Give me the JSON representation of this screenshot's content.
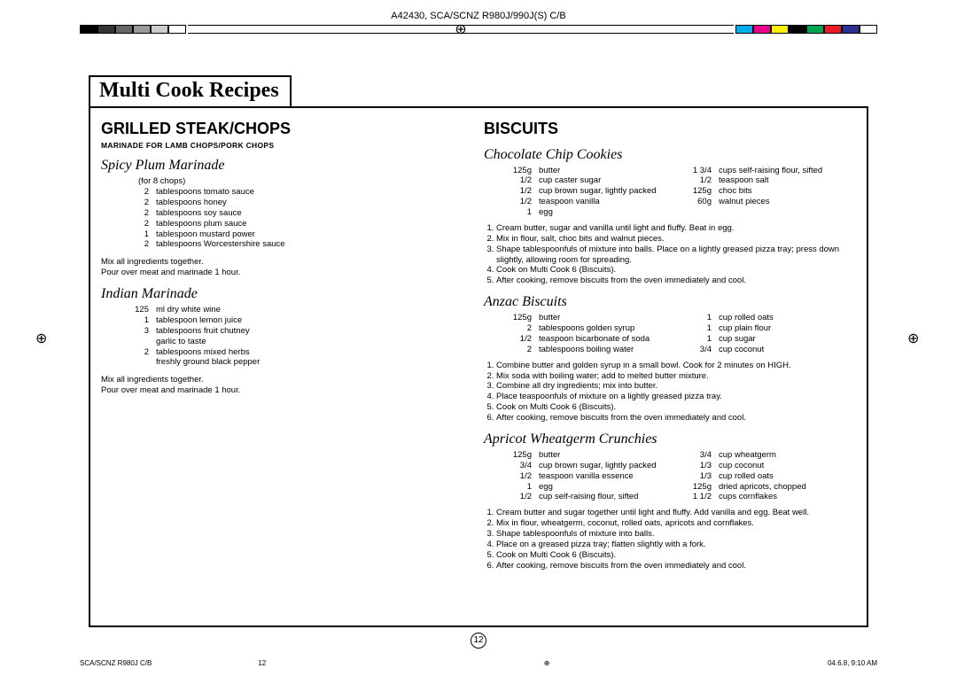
{
  "doc_id": "A42430, SCA/SCNZ R980J/990J(S) C/B",
  "page_title": "Multi Cook Recipes",
  "page_number": "12",
  "footer": {
    "left": "SCA/SCNZ R980J C/B",
    "mid": "12",
    "right": "04.6.8, 9:10 AM"
  },
  "reg_colors_left": [
    "#000000",
    "#333333",
    "#666666",
    "#999999",
    "#cccccc",
    "#ffffff"
  ],
  "reg_colors_right": [
    "#00aeef",
    "#ec008c",
    "#fff200",
    "#000000",
    "#00a651",
    "#ed1c24",
    "#2e3192",
    "#ffffff"
  ],
  "left_col": {
    "section_title": "GRILLED STEAK/CHOPS",
    "subtitle": "MARINADE FOR LAMB CHOPS/PORK CHOPS",
    "recipes": [
      {
        "name": "Spicy Plum Marinade",
        "serves": "(for 8 chops)",
        "ingredients": [
          {
            "q": "2",
            "n": "tablespoons tomato sauce"
          },
          {
            "q": "2",
            "n": "tablespoons honey"
          },
          {
            "q": "2",
            "n": "tablespoons soy sauce"
          },
          {
            "q": "2",
            "n": "tablespoons plum sauce"
          },
          {
            "q": "1",
            "n": "tablespoon mustard power"
          },
          {
            "q": "2",
            "n": "tablespoons Worcestershire sauce"
          }
        ],
        "method_lines": [
          "Mix all ingredients together.",
          "Pour over meat and marinade 1 hour."
        ]
      },
      {
        "name": "Indian Marinade",
        "ingredients": [
          {
            "q": "125",
            "n": "ml dry white wine"
          },
          {
            "q": "1",
            "n": "tablespoon lemon juice"
          },
          {
            "q": "3",
            "n": "tablespoons fruit chutney"
          },
          {
            "q": "",
            "n": "garlic to taste"
          },
          {
            "q": "2",
            "n": "tablespoons mixed herbs"
          },
          {
            "q": "",
            "n": "freshly ground black pepper"
          }
        ],
        "method_lines": [
          "Mix all ingredients together.",
          "Pour over meat and marinade 1 hour."
        ]
      }
    ]
  },
  "right_col": {
    "section_title": "BISCUITS",
    "recipes": [
      {
        "name": "Chocolate Chip Cookies",
        "ing_cols": [
          [
            {
              "q": "125g",
              "n": "butter"
            },
            {
              "q": "1/2",
              "n": "cup caster sugar"
            },
            {
              "q": "1/2",
              "n": "cup brown sugar, lightly packed"
            },
            {
              "q": "1/2",
              "n": "teaspoon vanilla"
            },
            {
              "q": "1",
              "n": "egg"
            }
          ],
          [
            {
              "q": "1 3/4",
              "n": "cups self-raising flour, sifted"
            },
            {
              "q": "1/2",
              "n": "teaspoon salt"
            },
            {
              "q": "125g",
              "n": "choc bits"
            },
            {
              "q": "60g",
              "n": "walnut pieces"
            }
          ]
        ],
        "steps": [
          "Cream butter, sugar and vanilla until light and fluffy. Beat in egg.",
          "Mix in flour, salt, choc bits and walnut pieces.",
          "Shape tablespoonfuls of mixture into balls. Place on a lightly greased pizza tray; press down slightly, allowing room for spreading.",
          "Cook on Multi Cook 6 (Biscuits).",
          "After cooking, remove biscuits from the oven immediately and cool."
        ]
      },
      {
        "name": "Anzac Biscuits",
        "ing_cols": [
          [
            {
              "q": "125g",
              "n": "butter"
            },
            {
              "q": "2",
              "n": "tablespoons golden syrup"
            },
            {
              "q": "1/2",
              "n": "teaspoon bicarbonate of soda"
            },
            {
              "q": "2",
              "n": "tablespoons boiling water"
            }
          ],
          [
            {
              "q": "1",
              "n": "cup rolled oats"
            },
            {
              "q": "1",
              "n": "cup plain flour"
            },
            {
              "q": "1",
              "n": "cup sugar"
            },
            {
              "q": "3/4",
              "n": "cup coconut"
            }
          ]
        ],
        "steps": [
          "Combine butter and golden syrup in a small bowl. Cook for 2 minutes on HIGH.",
          "Mix soda with boiling water; add to melted butter mixture.",
          "Combine all dry ingredients; mix into butter.",
          "Place teaspoonfuls of mixture on a lightly greased pizza tray.",
          "Cook on Multi Cook 6 (Biscuits).",
          "After cooking, remove biscuits from the oven immediately and cool."
        ]
      },
      {
        "name": "Apricot Wheatgerm Crunchies",
        "ing_cols": [
          [
            {
              "q": "125g",
              "n": "butter"
            },
            {
              "q": "3/4",
              "n": "cup brown sugar, lightly packed"
            },
            {
              "q": "1/2",
              "n": "teaspoon vanilla essence"
            },
            {
              "q": "1",
              "n": "egg"
            },
            {
              "q": "1/2",
              "n": "cup self-raising flour, sifted"
            }
          ],
          [
            {
              "q": "3/4",
              "n": "cup wheatgerm"
            },
            {
              "q": "1/3",
              "n": "cup coconut"
            },
            {
              "q": "1/3",
              "n": "cup rolled oats"
            },
            {
              "q": "125g",
              "n": "dried apricots, chopped"
            },
            {
              "q": "1 1/2",
              "n": "cups cornflakes"
            }
          ]
        ],
        "steps": [
          "Cream butter and sugar together until light and fluffy. Add vanilla and egg. Beat well.",
          "Mix in flour, wheatgerm, coconut, rolled oats, apricots and cornflakes.",
          "Shape tablespoonfuls of mixture into balls.",
          "Place on a greased pizza tray; flatten slightly with a fork.",
          "Cook on Multi Cook 6 (Biscuits).",
          "After cooking, remove biscuits from the oven immediately and cool."
        ]
      }
    ]
  }
}
